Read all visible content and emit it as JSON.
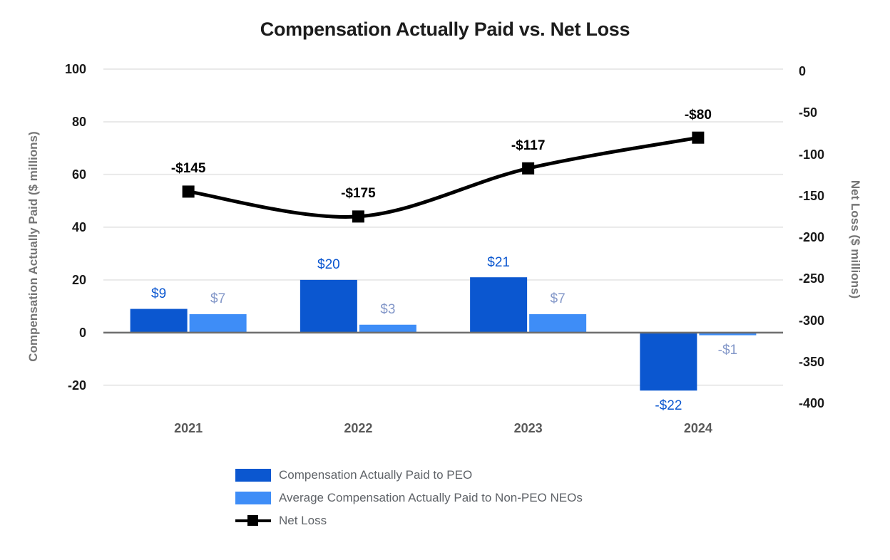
{
  "chart_data": {
    "type": "combo-bar-line",
    "title": "Compensation Actually Paid vs. Net Loss",
    "categories": [
      "2021",
      "2022",
      "2023",
      "2024"
    ],
    "series": [
      {
        "name": "Compensation Actually Paid to PEO",
        "type": "bar",
        "axis": "left",
        "color": "#0b57d0",
        "values": [
          9,
          20,
          21,
          -22
        ],
        "labels": [
          "$9",
          "$20",
          "$21",
          "-$22"
        ],
        "label_color": "#0b57d0"
      },
      {
        "name": "Average Compensation Actually Paid to Non-PEO NEOs",
        "type": "bar",
        "axis": "left",
        "color": "#3e8df7",
        "values": [
          7,
          3,
          7,
          -1
        ],
        "labels": [
          "$7",
          "$3",
          "$7",
          "-$1"
        ],
        "label_color": "#8498c9"
      },
      {
        "name": "Net Loss",
        "type": "line",
        "axis": "right",
        "color": "#000000",
        "marker": "square",
        "smooth": true,
        "values": [
          -145,
          -175,
          -117,
          -80
        ],
        "labels": [
          "-$145",
          "-$175",
          "-$117",
          "-$80"
        ],
        "label_color": "#000000"
      }
    ],
    "left_axis": {
      "title": "Compensation Actually Paid ($ millions)",
      "ticks": [
        100,
        80,
        60,
        40,
        20,
        0,
        -20
      ],
      "tick_labels": [
        "100",
        "80",
        "60",
        "40",
        "20",
        "0",
        "-20"
      ],
      "range": [
        -26,
        100
      ]
    },
    "right_axis": {
      "title": "Net Loss ($ millions)",
      "ticks": [
        0,
        -50,
        -100,
        -150,
        -200,
        -250,
        -300,
        -350,
        -400
      ],
      "tick_labels": [
        "0",
        "-50",
        "-100",
        "-150",
        "-200",
        "-250",
        "-300",
        "-350",
        "-400"
      ],
      "range": [
        -400,
        0
      ]
    },
    "grid": true,
    "legend_position": "bottom-left",
    "background": "#ffffff",
    "gridline_color": "#e9e9e9",
    "zero_line_color": "#6d6d6d",
    "tick_label_color": "#1a1a1a",
    "category_label_color": "#595959",
    "axis_title_color": "#757575",
    "legend_text_color": "#5f6368"
  }
}
